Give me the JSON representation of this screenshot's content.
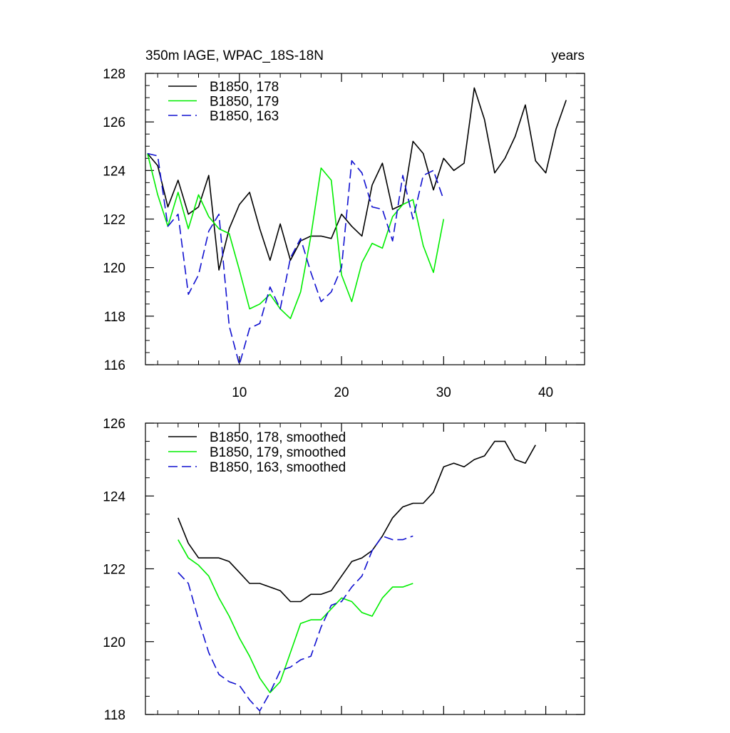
{
  "colors": {
    "series_178": "#000000",
    "series_179": "#00ee00",
    "series_163": "#1010d0"
  },
  "chart_data": [
    {
      "type": "line",
      "title_left": "350m IAGE, WPAC_18S-18N",
      "title_right": "years",
      "xlabel": "",
      "ylabel": "",
      "xlim": [
        0.8,
        43.8
      ],
      "ylim": [
        116,
        128
      ],
      "x_ticks": [
        10,
        20,
        30,
        40
      ],
      "x_tick_labels": [
        "10",
        "20",
        "30",
        "40"
      ],
      "y_ticks": [
        116,
        118,
        120,
        122,
        124,
        126,
        128
      ],
      "y_tick_labels": [
        "116",
        "118",
        "120",
        "122",
        "124",
        "126",
        "128"
      ],
      "legend_position": "top-left",
      "series": [
        {
          "name": "B1850, 178",
          "style": "solid",
          "color_key": "series_178",
          "x": [
            1,
            2,
            3,
            4,
            5,
            6,
            7,
            8,
            9,
            10,
            11,
            12,
            13,
            14,
            15,
            16,
            17,
            18,
            19,
            20,
            21,
            22,
            23,
            24,
            25,
            26,
            27,
            28,
            29,
            30,
            31,
            32,
            33,
            34,
            35,
            36,
            37,
            38,
            39,
            40,
            41,
            42
          ],
          "values": [
            124.7,
            124.2,
            122.5,
            123.6,
            122.2,
            122.5,
            123.8,
            119.9,
            121.6,
            122.6,
            123.1,
            121.6,
            120.3,
            121.8,
            120.3,
            121.1,
            121.3,
            121.3,
            121.2,
            122.2,
            121.7,
            121.3,
            123.4,
            124.3,
            122.4,
            122.6,
            125.2,
            124.7,
            123.2,
            124.5,
            124.0,
            124.3,
            127.4,
            126.1,
            123.9,
            124.5,
            125.4,
            126.7,
            124.4,
            123.9,
            125.7,
            126.9
          ]
        },
        {
          "name": "B1850, 179",
          "style": "solid",
          "color_key": "series_179",
          "x": [
            1,
            2,
            3,
            4,
            5,
            6,
            7,
            8,
            9,
            10,
            11,
            12,
            13,
            14,
            15,
            16,
            17,
            18,
            19,
            20,
            21,
            22,
            23,
            24,
            25,
            26,
            27,
            28,
            29,
            30
          ],
          "values": [
            124.7,
            123.0,
            121.7,
            123.1,
            121.6,
            123.0,
            122.1,
            121.6,
            121.4,
            119.9,
            118.3,
            118.5,
            118.9,
            118.3,
            117.9,
            119.0,
            121.3,
            124.1,
            123.6,
            119.7,
            118.6,
            120.2,
            121.0,
            120.8,
            122.1,
            122.6,
            122.8,
            120.9,
            119.8,
            122.0
          ]
        },
        {
          "name": "B1850, 163",
          "style": "dashed",
          "color_key": "series_163",
          "x": [
            1,
            2,
            3,
            4,
            5,
            6,
            7,
            8,
            9,
            10,
            11,
            12,
            13,
            14,
            15,
            16,
            17,
            18,
            19,
            20,
            21,
            22,
            23,
            24,
            25,
            26,
            27,
            28,
            29,
            30
          ],
          "values": [
            124.7,
            124.6,
            121.7,
            122.2,
            118.9,
            119.7,
            121.5,
            122.2,
            117.6,
            116.0,
            117.5,
            117.7,
            119.2,
            118.3,
            120.4,
            121.2,
            119.8,
            118.6,
            119.0,
            120.0,
            124.4,
            123.9,
            122.5,
            122.4,
            121.1,
            123.8,
            122.0,
            123.8,
            124.0,
            122.8
          ]
        }
      ]
    },
    {
      "type": "line",
      "title_left": "",
      "title_right": "",
      "xlabel": "",
      "ylabel": "",
      "xlim": [
        0.8,
        43.8
      ],
      "ylim": [
        118,
        126
      ],
      "x_ticks": [
        10,
        20,
        30,
        40
      ],
      "x_tick_labels": [],
      "y_ticks": [
        118,
        120,
        122,
        124,
        126
      ],
      "y_tick_labels": [
        "118",
        "120",
        "122",
        "124",
        "126"
      ],
      "legend_position": "top-left",
      "series": [
        {
          "name": "B1850, 178, smoothed",
          "style": "solid",
          "color_key": "series_178",
          "x": [
            4,
            5,
            6,
            7,
            8,
            9,
            10,
            11,
            12,
            13,
            14,
            15,
            16,
            17,
            18,
            19,
            20,
            21,
            22,
            23,
            24,
            25,
            26,
            27,
            28,
            29,
            30,
            31,
            32,
            33,
            34,
            35,
            36,
            37,
            38,
            39
          ],
          "values": [
            123.4,
            122.7,
            122.3,
            122.3,
            122.3,
            122.2,
            121.9,
            121.6,
            121.6,
            121.5,
            121.4,
            121.1,
            121.1,
            121.3,
            121.3,
            121.4,
            121.8,
            122.2,
            122.3,
            122.5,
            122.9,
            123.4,
            123.7,
            123.8,
            123.8,
            124.1,
            124.8,
            124.9,
            124.8,
            125.0,
            125.1,
            125.5,
            125.5,
            125.0,
            124.9,
            125.4
          ]
        },
        {
          "name": "B1850, 179, smoothed",
          "style": "solid",
          "color_key": "series_179",
          "x": [
            4,
            5,
            6,
            7,
            8,
            9,
            10,
            11,
            12,
            13,
            14,
            15,
            16,
            17,
            18,
            19,
            20,
            21,
            22,
            23,
            24,
            25,
            26,
            27
          ],
          "values": [
            122.8,
            122.3,
            122.1,
            121.8,
            121.2,
            120.7,
            120.1,
            119.6,
            119.0,
            118.6,
            118.9,
            119.7,
            120.5,
            120.6,
            120.6,
            120.9,
            121.2,
            121.1,
            120.8,
            120.7,
            121.2,
            121.5,
            121.5,
            121.6
          ]
        },
        {
          "name": "B1850, 163, smoothed",
          "style": "dashed",
          "color_key": "series_163",
          "x": [
            4,
            5,
            6,
            7,
            8,
            9,
            10,
            11,
            12,
            13,
            14,
            15,
            16,
            17,
            18,
            19,
            20,
            21,
            22,
            23,
            24,
            25,
            26,
            27
          ],
          "values": [
            121.9,
            121.6,
            120.6,
            119.7,
            119.1,
            118.9,
            118.8,
            118.4,
            118.1,
            118.6,
            119.2,
            119.3,
            119.5,
            119.6,
            120.4,
            121.0,
            121.1,
            121.5,
            121.8,
            122.5,
            122.9,
            122.8,
            122.8,
            122.9
          ]
        }
      ]
    }
  ]
}
